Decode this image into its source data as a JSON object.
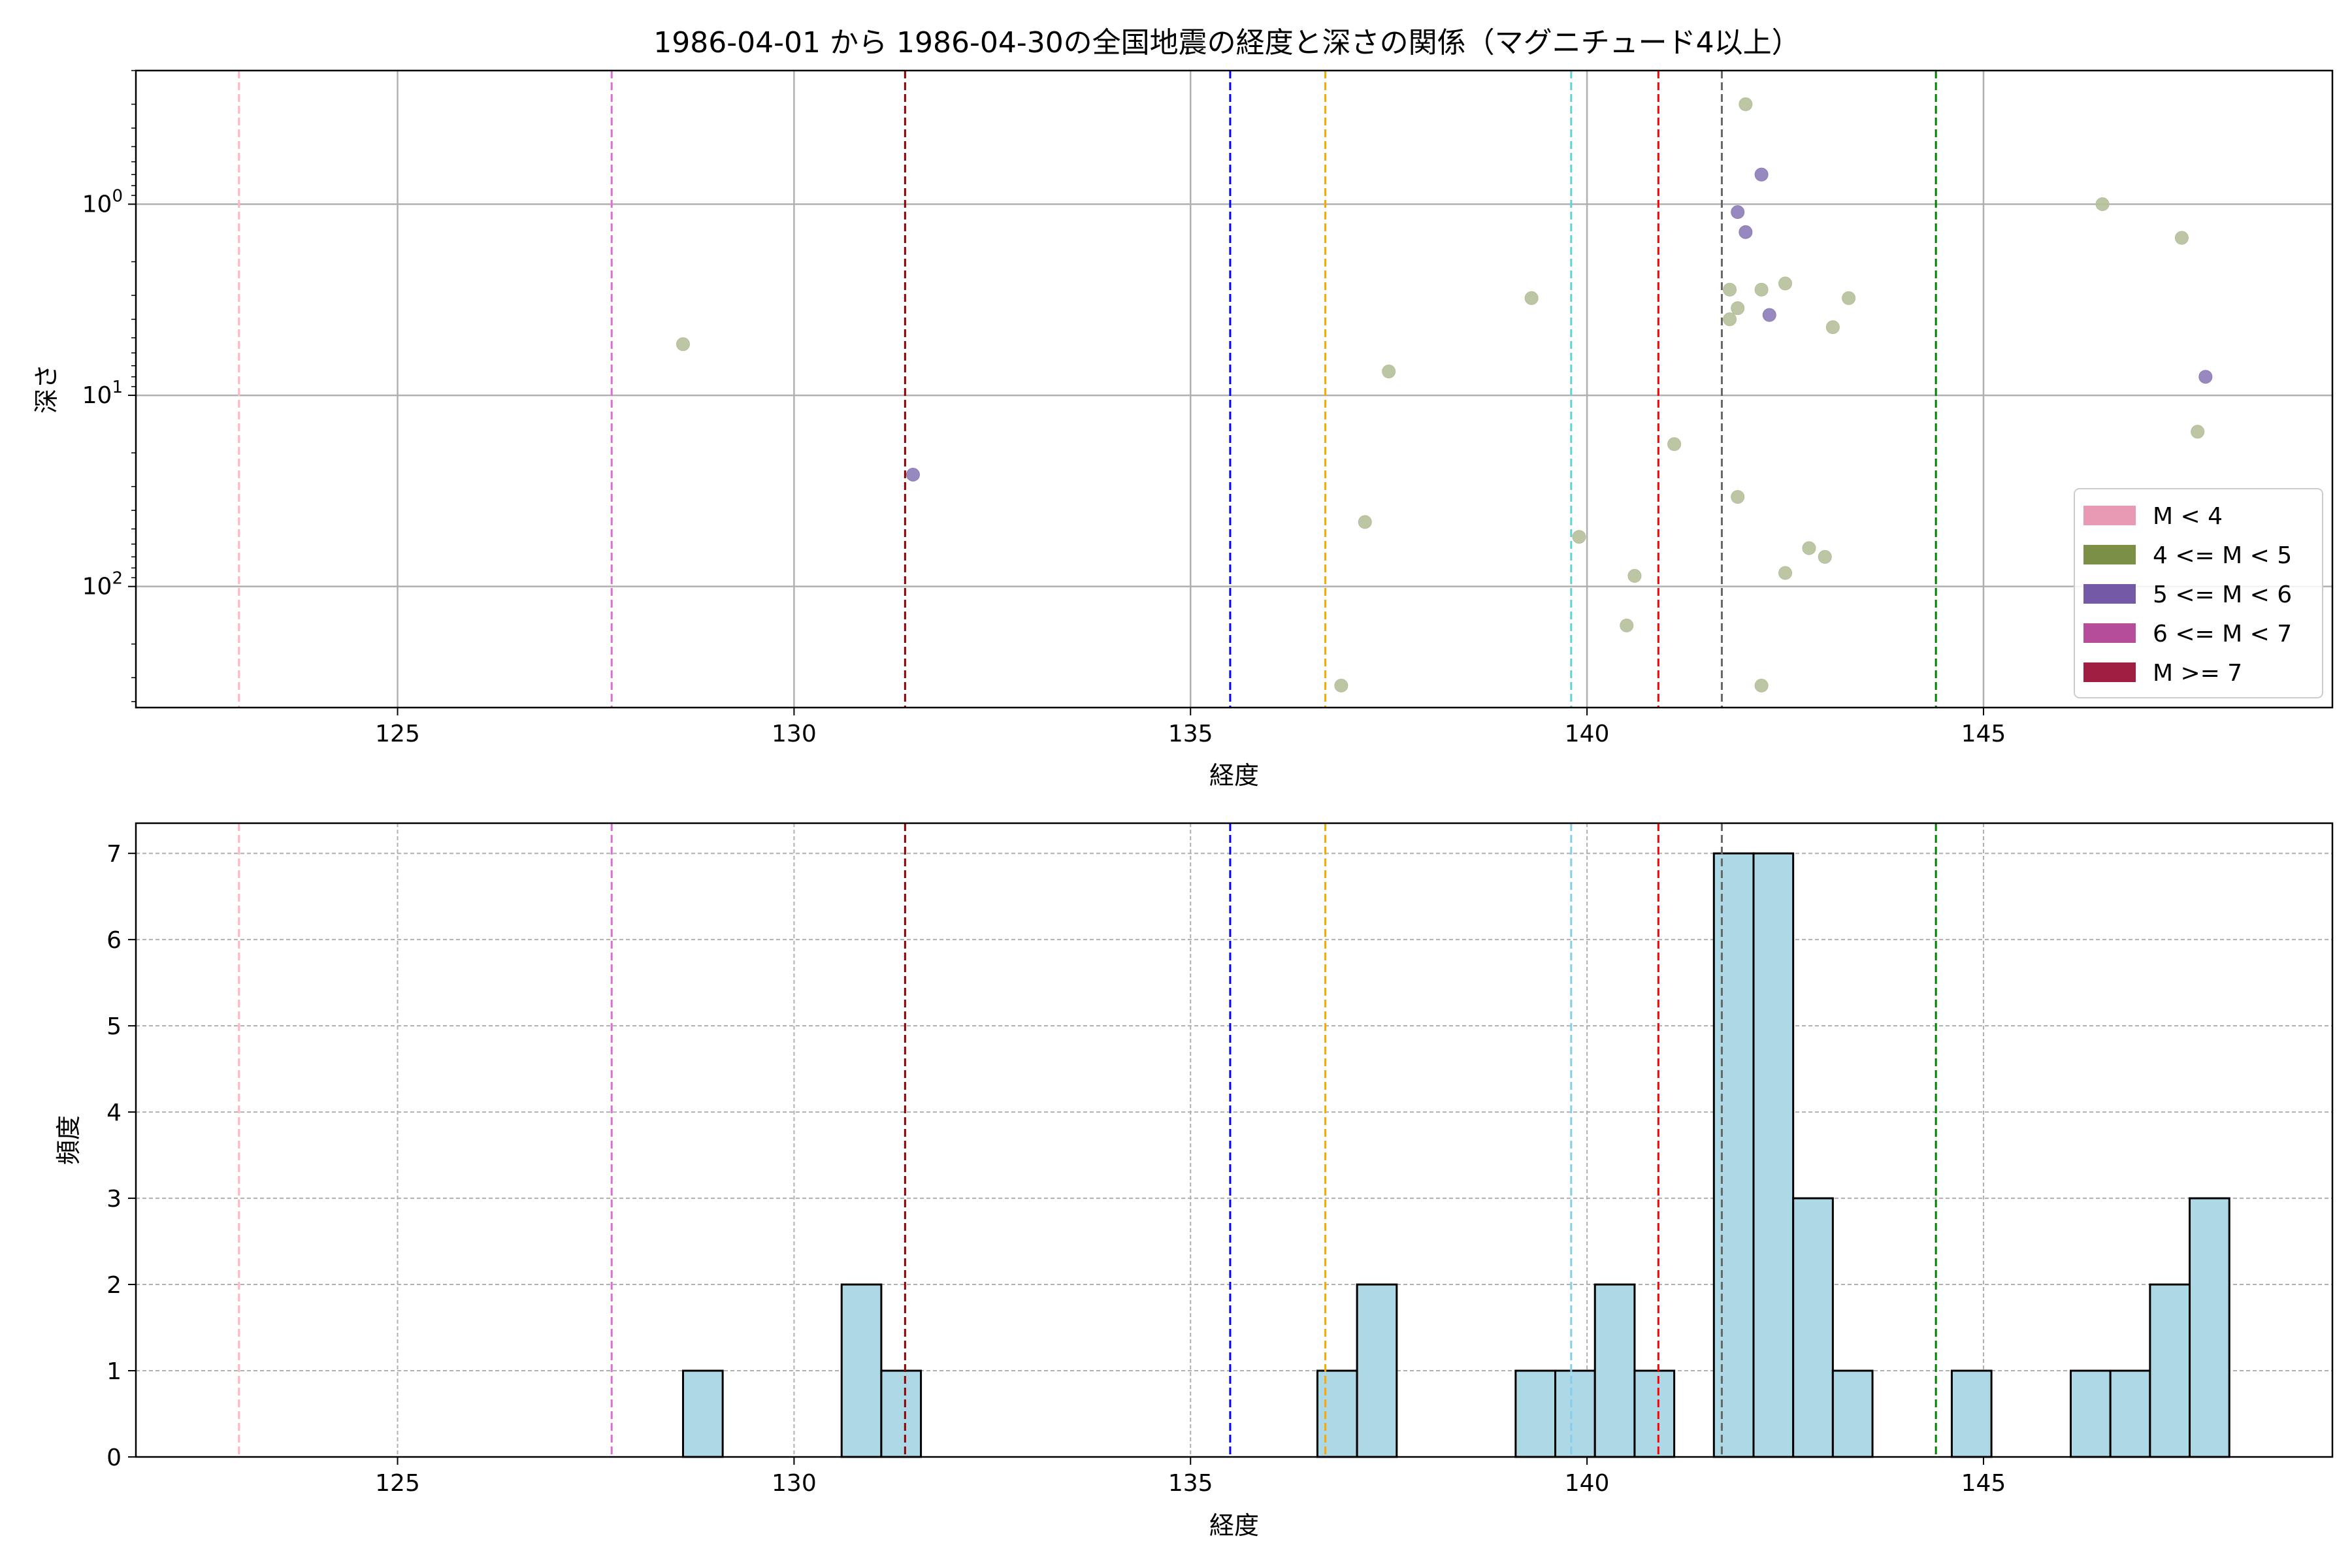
{
  "chart_data": [
    {
      "type": "scatter",
      "title": "1986-04-01 から 1986-04-30の全国地震の経度と深さの関係（マグニチュード4以上）",
      "xlabel": "経度",
      "ylabel": "深さ",
      "xlim": [
        121.7,
        149.4
      ],
      "ylim": [
        430,
        0.2
      ],
      "y_scale": "log",
      "y_inverted": true,
      "x_ticks": [
        125,
        130,
        135,
        140,
        145
      ],
      "y_ticks": [
        {
          "value": 1,
          "label": "10^0",
          "base": "10",
          "exp": "0"
        },
        {
          "value": 10,
          "label": "10^1",
          "base": "10",
          "exp": "1"
        },
        {
          "value": 100,
          "label": "10^2",
          "base": "10",
          "exp": "2"
        }
      ],
      "grid": true,
      "vlines": [
        {
          "x": 123.0,
          "color": "#ffb6c1"
        },
        {
          "x": 127.7,
          "color": "#da70d6"
        },
        {
          "x": 131.4,
          "color": "#8b0000"
        },
        {
          "x": 135.5,
          "color": "#0000ff"
        },
        {
          "x": 136.7,
          "color": "#ffa500"
        },
        {
          "x": 139.8,
          "color": "#5fd3d9"
        },
        {
          "x": 140.9,
          "color": "#ff0000"
        },
        {
          "x": 141.7,
          "color": "#666666"
        },
        {
          "x": 144.4,
          "color": "#008000"
        }
      ],
      "legend": {
        "placement": "lower-right",
        "entries": [
          {
            "label": "M < 4",
            "color": "#e89ab5"
          },
          {
            "label": "4 <= M < 5",
            "color": "#7c8f46"
          },
          {
            "label": "5 <= M < 6",
            "color": "#7459a6"
          },
          {
            "label": "6 <= M < 7",
            "color": "#b54d9a"
          },
          {
            "label": "M >= 7",
            "color": "#a01e42"
          }
        ]
      },
      "series": [
        {
          "class": "4 <= M < 5",
          "color": "#b5bf9a",
          "points": [
            {
              "x": 128.6,
              "y": 5.4
            },
            {
              "x": 136.9,
              "y": 330
            },
            {
              "x": 137.2,
              "y": 46
            },
            {
              "x": 137.5,
              "y": 7.5
            },
            {
              "x": 139.3,
              "y": 3.1
            },
            {
              "x": 139.9,
              "y": 55
            },
            {
              "x": 140.5,
              "y": 160
            },
            {
              "x": 140.6,
              "y": 88
            },
            {
              "x": 141.1,
              "y": 18
            },
            {
              "x": 141.8,
              "y": 4.0
            },
            {
              "x": 141.8,
              "y": 2.8
            },
            {
              "x": 141.9,
              "y": 3.5
            },
            {
              "x": 141.9,
              "y": 34
            },
            {
              "x": 142.0,
              "y": 0.3
            },
            {
              "x": 142.2,
              "y": 2.8
            },
            {
              "x": 142.2,
              "y": 330
            },
            {
              "x": 142.5,
              "y": 2.6
            },
            {
              "x": 142.5,
              "y": 85
            },
            {
              "x": 142.8,
              "y": 63
            },
            {
              "x": 143.0,
              "y": 70
            },
            {
              "x": 143.1,
              "y": 4.4
            },
            {
              "x": 143.3,
              "y": 3.1
            },
            {
              "x": 146.5,
              "y": 1.0
            },
            {
              "x": 147.5,
              "y": 1.5
            },
            {
              "x": 147.7,
              "y": 15.5
            }
          ]
        },
        {
          "class": "5 <= M < 6",
          "color": "#8c7bb8",
          "points": [
            {
              "x": 131.5,
              "y": 26
            },
            {
              "x": 141.9,
              "y": 1.1
            },
            {
              "x": 142.0,
              "y": 1.4
            },
            {
              "x": 142.2,
              "y": 0.7
            },
            {
              "x": 142.3,
              "y": 3.8
            },
            {
              "x": 147.8,
              "y": 8.0
            }
          ]
        }
      ]
    },
    {
      "type": "bar",
      "xlabel": "経度",
      "ylabel": "頻度",
      "xlim": [
        121.7,
        149.4
      ],
      "ylim": [
        0,
        7.35
      ],
      "x_ticks": [
        125,
        130,
        135,
        140,
        145
      ],
      "y_ticks": [
        0,
        1,
        2,
        3,
        4,
        5,
        6,
        7
      ],
      "grid": true,
      "bar_color": "#add8e6",
      "bin_width": 0.5,
      "bins": [
        {
          "start": 128.6,
          "count": 1
        },
        {
          "start": 130.6,
          "count": 2
        },
        {
          "start": 131.1,
          "count": 1
        },
        {
          "start": 136.6,
          "count": 1
        },
        {
          "start": 137.1,
          "count": 2
        },
        {
          "start": 139.1,
          "count": 1
        },
        {
          "start": 139.6,
          "count": 1
        },
        {
          "start": 140.1,
          "count": 2
        },
        {
          "start": 140.6,
          "count": 1
        },
        {
          "start": 141.6,
          "count": 7
        },
        {
          "start": 142.1,
          "count": 7
        },
        {
          "start": 142.6,
          "count": 3
        },
        {
          "start": 143.1,
          "count": 1
        },
        {
          "start": 144.6,
          "count": 1
        },
        {
          "start": 146.1,
          "count": 1
        },
        {
          "start": 146.6,
          "count": 1
        },
        {
          "start": 147.1,
          "count": 2
        },
        {
          "start": 147.6,
          "count": 3
        }
      ],
      "vlines": [
        {
          "x": 123.0,
          "color": "#ffb6c1"
        },
        {
          "x": 127.7,
          "color": "#da70d6"
        },
        {
          "x": 131.4,
          "color": "#8b0000"
        },
        {
          "x": 135.5,
          "color": "#0000ff"
        },
        {
          "x": 136.7,
          "color": "#ffa500"
        },
        {
          "x": 139.8,
          "color": "#87ceeb"
        },
        {
          "x": 140.9,
          "color": "#ff0000"
        },
        {
          "x": 141.7,
          "color": "#666666"
        },
        {
          "x": 144.4,
          "color": "#008000"
        }
      ]
    }
  ]
}
